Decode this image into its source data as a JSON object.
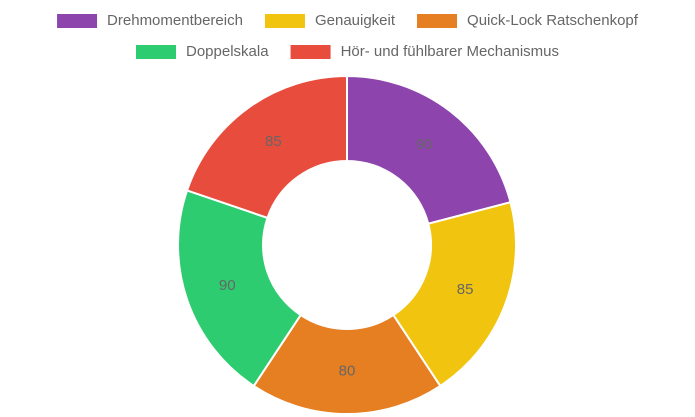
{
  "chart_data": {
    "type": "doughnut",
    "categories": [
      "Drehmomentbereich",
      "Genauigkeit",
      "Quick-Lock Ratschenkopf",
      "Doppelskala",
      "Hör- und fühlbarer Mechanismus"
    ],
    "values": [
      90,
      85,
      80,
      90,
      85
    ],
    "colors": [
      "#8e44ad",
      "#f1c40f",
      "#e67e22",
      "#2ecc71",
      "#e74c3c"
    ]
  }
}
